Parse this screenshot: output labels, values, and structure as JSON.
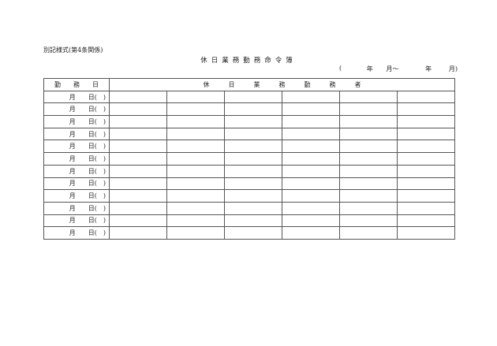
{
  "form_note": "別記様式(第4条関係)",
  "title": "休日業務勤務命令簿",
  "period": {
    "open": "(",
    "year1": "年",
    "month1": "月～",
    "year2": "年",
    "close": "月)"
  },
  "header": {
    "date_col": "勤　　務　　日",
    "workers_col": "休　　　日　　　業　　　務　　　勤　　　務　　　者"
  },
  "row_date_template": "月　　日(　)",
  "row_count": 12
}
